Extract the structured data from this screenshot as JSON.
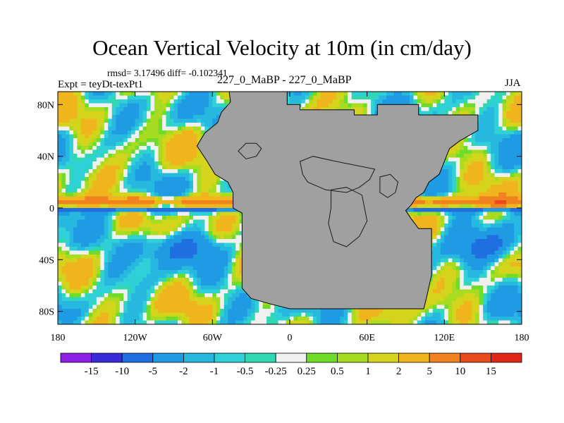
{
  "chart_data": {
    "type": "filled-contour-map",
    "title": "Ocean Vertical Velocity at 10m (in cm/day)",
    "stats": "rmsd= 3.17496 diff= -0.102341",
    "experiment": "Expt = teyDt-texPt1",
    "case": "227_0_MaBP - 227_0_MaBP",
    "season": "JJA",
    "x_ticks": [
      {
        "value": -180,
        "label": "180"
      },
      {
        "value": -120,
        "label": "120W"
      },
      {
        "value": -60,
        "label": "60W"
      },
      {
        "value": 0,
        "label": "0"
      },
      {
        "value": 60,
        "label": "60E"
      },
      {
        "value": 120,
        "label": "120E"
      },
      {
        "value": 180,
        "label": "180"
      }
    ],
    "y_ticks": [
      {
        "value": 80,
        "label": "80N"
      },
      {
        "value": 40,
        "label": "40N"
      },
      {
        "value": 0,
        "label": "0"
      },
      {
        "value": -40,
        "label": "40S"
      },
      {
        "value": -80,
        "label": "80S"
      }
    ],
    "xlim": [
      -180,
      180
    ],
    "ylim": [
      -90,
      90
    ],
    "colorbar": {
      "levels": [
        "-15",
        "-10",
        "-5",
        "-2",
        "-1",
        "-0.5",
        "-0.25",
        "0.25",
        "0.5",
        "1",
        "2",
        "5",
        "10",
        "15"
      ],
      "colors": [
        "#8a1fe6",
        "#3a2bd8",
        "#1f6fe0",
        "#1f9be3",
        "#27b8e0",
        "#2fd0d8",
        "#2fd8b0",
        "#f0f0f0",
        "#6fdc2a",
        "#a8dc20",
        "#d4d41c",
        "#f0b41c",
        "#f08220",
        "#e84c1c",
        "#e02818"
      ]
    },
    "land_color": "#a0a0a0",
    "land_outline": [
      [
        -47,
        90
      ],
      [
        -2,
        90
      ],
      [
        -2,
        80
      ],
      [
        8,
        80
      ],
      [
        8,
        76
      ],
      [
        50,
        76
      ],
      [
        50,
        72
      ],
      [
        68,
        72
      ],
      [
        68,
        80
      ],
      [
        100,
        80
      ],
      [
        100,
        72
      ],
      [
        146,
        72
      ],
      [
        146,
        60
      ],
      [
        132,
        52
      ],
      [
        124,
        46
      ],
      [
        120,
        36
      ],
      [
        116,
        26
      ],
      [
        108,
        20
      ],
      [
        104,
        12
      ],
      [
        98,
        8
      ],
      [
        94,
        2
      ],
      [
        90,
        -2
      ],
      [
        94,
        -8
      ],
      [
        100,
        -16
      ],
      [
        110,
        -16
      ],
      [
        110,
        -52
      ],
      [
        106,
        -70
      ],
      [
        104,
        -78
      ],
      [
        0,
        -78
      ],
      [
        -16,
        -74
      ],
      [
        -30,
        -70
      ],
      [
        -37,
        -62
      ],
      [
        -37,
        -4
      ],
      [
        -44,
        0
      ],
      [
        -44,
        12
      ],
      [
        -48,
        20
      ],
      [
        -58,
        26
      ],
      [
        -64,
        36
      ],
      [
        -68,
        42
      ],
      [
        -72,
        48
      ],
      [
        -66,
        58
      ],
      [
        -56,
        66
      ],
      [
        -53,
        74
      ],
      [
        -46,
        82
      ]
    ],
    "land_patches": [
      [
        [
          8,
          36
        ],
        [
          18,
          40
        ],
        [
          36,
          36
        ],
        [
          56,
          32
        ],
        [
          66,
          30
        ],
        [
          62,
          22
        ],
        [
          54,
          16
        ],
        [
          44,
          12
        ],
        [
          28,
          14
        ],
        [
          14,
          20
        ],
        [
          10,
          26
        ]
      ],
      [
        [
          32,
          14
        ],
        [
          44,
          16
        ],
        [
          56,
          10
        ],
        [
          58,
          0
        ],
        [
          60,
          -10
        ],
        [
          54,
          -22
        ],
        [
          44,
          -30
        ],
        [
          34,
          -26
        ],
        [
          30,
          -12
        ],
        [
          32,
          0
        ]
      ],
      [
        [
          70,
          24
        ],
        [
          78,
          26
        ],
        [
          84,
          20
        ],
        [
          82,
          12
        ],
        [
          76,
          8
        ],
        [
          70,
          12
        ]
      ],
      [
        [
          -40,
          44
        ],
        [
          -34,
          50
        ],
        [
          -26,
          50
        ],
        [
          -22,
          46
        ],
        [
          -26,
          40
        ],
        [
          -34,
          38
        ]
      ]
    ]
  }
}
